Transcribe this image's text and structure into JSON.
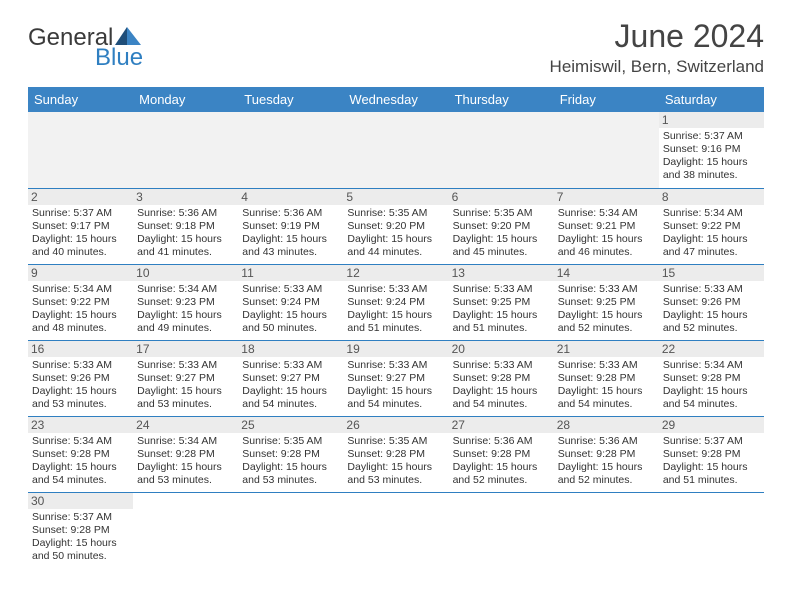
{
  "brand": {
    "part1": "General",
    "part2": "Blue"
  },
  "title": "June 2024",
  "location": "Heimiswil, Bern, Switzerland",
  "colors": {
    "header_bg": "#3b84c4",
    "header_text": "#ffffff",
    "rule": "#2f7fc1",
    "daynum_bg": "#ececec",
    "blank_bg": "#f2f2f2"
  },
  "weekdays": [
    "Sunday",
    "Monday",
    "Tuesday",
    "Wednesday",
    "Thursday",
    "Friday",
    "Saturday"
  ],
  "days": {
    "1": {
      "sunrise": "5:37 AM",
      "sunset": "9:16 PM",
      "daylight": "15 hours and 38 minutes."
    },
    "2": {
      "sunrise": "5:37 AM",
      "sunset": "9:17 PM",
      "daylight": "15 hours and 40 minutes."
    },
    "3": {
      "sunrise": "5:36 AM",
      "sunset": "9:18 PM",
      "daylight": "15 hours and 41 minutes."
    },
    "4": {
      "sunrise": "5:36 AM",
      "sunset": "9:19 PM",
      "daylight": "15 hours and 43 minutes."
    },
    "5": {
      "sunrise": "5:35 AM",
      "sunset": "9:20 PM",
      "daylight": "15 hours and 44 minutes."
    },
    "6": {
      "sunrise": "5:35 AM",
      "sunset": "9:20 PM",
      "daylight": "15 hours and 45 minutes."
    },
    "7": {
      "sunrise": "5:34 AM",
      "sunset": "9:21 PM",
      "daylight": "15 hours and 46 minutes."
    },
    "8": {
      "sunrise": "5:34 AM",
      "sunset": "9:22 PM",
      "daylight": "15 hours and 47 minutes."
    },
    "9": {
      "sunrise": "5:34 AM",
      "sunset": "9:22 PM",
      "daylight": "15 hours and 48 minutes."
    },
    "10": {
      "sunrise": "5:34 AM",
      "sunset": "9:23 PM",
      "daylight": "15 hours and 49 minutes."
    },
    "11": {
      "sunrise": "5:33 AM",
      "sunset": "9:24 PM",
      "daylight": "15 hours and 50 minutes."
    },
    "12": {
      "sunrise": "5:33 AM",
      "sunset": "9:24 PM",
      "daylight": "15 hours and 51 minutes."
    },
    "13": {
      "sunrise": "5:33 AM",
      "sunset": "9:25 PM",
      "daylight": "15 hours and 51 minutes."
    },
    "14": {
      "sunrise": "5:33 AM",
      "sunset": "9:25 PM",
      "daylight": "15 hours and 52 minutes."
    },
    "15": {
      "sunrise": "5:33 AM",
      "sunset": "9:26 PM",
      "daylight": "15 hours and 52 minutes."
    },
    "16": {
      "sunrise": "5:33 AM",
      "sunset": "9:26 PM",
      "daylight": "15 hours and 53 minutes."
    },
    "17": {
      "sunrise": "5:33 AM",
      "sunset": "9:27 PM",
      "daylight": "15 hours and 53 minutes."
    },
    "18": {
      "sunrise": "5:33 AM",
      "sunset": "9:27 PM",
      "daylight": "15 hours and 54 minutes."
    },
    "19": {
      "sunrise": "5:33 AM",
      "sunset": "9:27 PM",
      "daylight": "15 hours and 54 minutes."
    },
    "20": {
      "sunrise": "5:33 AM",
      "sunset": "9:28 PM",
      "daylight": "15 hours and 54 minutes."
    },
    "21": {
      "sunrise": "5:33 AM",
      "sunset": "9:28 PM",
      "daylight": "15 hours and 54 minutes."
    },
    "22": {
      "sunrise": "5:34 AM",
      "sunset": "9:28 PM",
      "daylight": "15 hours and 54 minutes."
    },
    "23": {
      "sunrise": "5:34 AM",
      "sunset": "9:28 PM",
      "daylight": "15 hours and 54 minutes."
    },
    "24": {
      "sunrise": "5:34 AM",
      "sunset": "9:28 PM",
      "daylight": "15 hours and 53 minutes."
    },
    "25": {
      "sunrise": "5:35 AM",
      "sunset": "9:28 PM",
      "daylight": "15 hours and 53 minutes."
    },
    "26": {
      "sunrise": "5:35 AM",
      "sunset": "9:28 PM",
      "daylight": "15 hours and 53 minutes."
    },
    "27": {
      "sunrise": "5:36 AM",
      "sunset": "9:28 PM",
      "daylight": "15 hours and 52 minutes."
    },
    "28": {
      "sunrise": "5:36 AM",
      "sunset": "9:28 PM",
      "daylight": "15 hours and 52 minutes."
    },
    "29": {
      "sunrise": "5:37 AM",
      "sunset": "9:28 PM",
      "daylight": "15 hours and 51 minutes."
    },
    "30": {
      "sunrise": "5:37 AM",
      "sunset": "9:28 PM",
      "daylight": "15 hours and 50 minutes."
    }
  },
  "labels": {
    "sunrise": "Sunrise: ",
    "sunset": "Sunset: ",
    "daylight": "Daylight: "
  },
  "layout": {
    "first_weekday_index": 6,
    "days_in_month": 30
  }
}
